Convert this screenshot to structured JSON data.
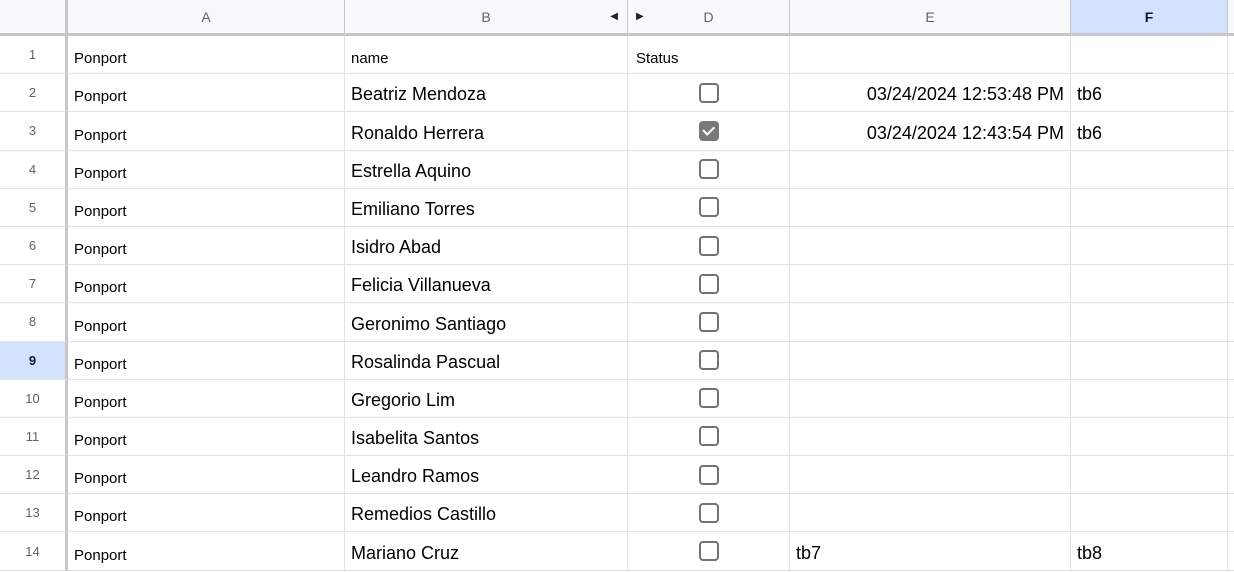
{
  "colors": {
    "selection_blue": "#1a73e8",
    "fill_handle_blue": "#1765cc",
    "active_header_bg": "#d3e3fd",
    "active_header_text": "#001d35",
    "header_bg": "#f8f9fa",
    "header_text": "#5f6368",
    "gridline": "#e2e2e2",
    "header_border": "#c7c7c7",
    "checkbox_gray": "#797979",
    "cell_text": "#000000"
  },
  "column_headers": {
    "a": "A",
    "b": "B",
    "d": "D",
    "e": "E",
    "f": "F"
  },
  "hidden_column_indicator": {
    "left_arrow": "◀",
    "right_arrow": "▶"
  },
  "first_row": {
    "num": "1",
    "a": "Ponport",
    "b": "name",
    "d": "Status"
  },
  "rows": [
    {
      "num": "2",
      "a": "Ponport",
      "b": "Beatriz Mendoza",
      "checkbox": false,
      "e": "03/24/2024 12:53:48 PM",
      "f": "tb6"
    },
    {
      "num": "3",
      "a": "Ponport",
      "b": "Ronaldo Herrera",
      "checkbox": true,
      "e": "03/24/2024 12:43:54 PM",
      "f": "tb6"
    },
    {
      "num": "4",
      "a": "Ponport",
      "b": "Estrella Aquino",
      "checkbox": false,
      "e": "",
      "f": ""
    },
    {
      "num": "5",
      "a": "Ponport",
      "b": "Emiliano Torres",
      "checkbox": false,
      "e": "",
      "f": ""
    },
    {
      "num": "6",
      "a": "Ponport",
      "b": "Isidro Abad",
      "checkbox": false,
      "e": "",
      "f": ""
    },
    {
      "num": "7",
      "a": "Ponport",
      "b": "Felicia Villanueva",
      "checkbox": false,
      "e": "",
      "f": ""
    },
    {
      "num": "8",
      "a": "Ponport",
      "b": "Geronimo Santiago",
      "checkbox": false,
      "e": "",
      "f": ""
    },
    {
      "num": "9",
      "a": "Ponport",
      "b": "Rosalinda Pascual",
      "checkbox": false,
      "e": "",
      "f": ""
    },
    {
      "num": "10",
      "a": "Ponport",
      "b": "Gregorio Lim",
      "checkbox": false,
      "e": "",
      "f": ""
    },
    {
      "num": "11",
      "a": "Ponport",
      "b": "Isabelita Santos",
      "checkbox": false,
      "e": "",
      "f": ""
    },
    {
      "num": "12",
      "a": "Ponport",
      "b": "Leandro Ramos",
      "checkbox": false,
      "e": "",
      "f": ""
    },
    {
      "num": "13",
      "a": "Ponport",
      "b": "Remedios Castillo",
      "checkbox": false,
      "e": "",
      "f": ""
    },
    {
      "num": "14",
      "a": "Ponport",
      "b": "Mariano Cruz",
      "checkbox": false,
      "e": "tb7",
      "f": "tb8"
    }
  ],
  "selection": {
    "active_cell": "F9",
    "active_row_number": "9",
    "active_column": "F"
  }
}
